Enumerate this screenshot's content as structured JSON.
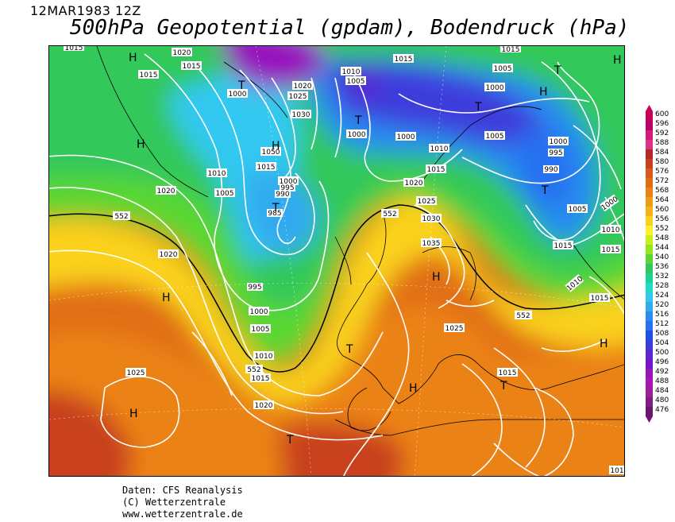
{
  "header": {
    "date": "12MAR1983 12Z",
    "title": "500hPa Geopotential (gpdam), Bodendruck (hPa)"
  },
  "credits": {
    "line1": "Daten: CFS Reanalysis",
    "line2": "(C) Wetterzentrale",
    "line3": "www.wetterzentrale.de"
  },
  "legend": {
    "values": [
      "600",
      "596",
      "592",
      "588",
      "584",
      "580",
      "576",
      "572",
      "568",
      "564",
      "560",
      "556",
      "552",
      "548",
      "544",
      "540",
      "536",
      "532",
      "528",
      "524",
      "520",
      "516",
      "512",
      "508",
      "504",
      "500",
      "496",
      "492",
      "488",
      "484",
      "480",
      "476"
    ],
    "colors": [
      "#c8005a",
      "#b8006e",
      "#d21b78",
      "#e0308a",
      "#b42828",
      "#c8401e",
      "#d75a19",
      "#e16e14",
      "#eb8214",
      "#f09b14",
      "#f5b414",
      "#fad21e",
      "#fff028",
      "#c8f01e",
      "#96e61e",
      "#5ad732",
      "#32c85a",
      "#1ed296",
      "#1edcc8",
      "#32c8f0",
      "#32aaf0",
      "#288cf0",
      "#2870f0",
      "#1e50e6",
      "#3c3cdc",
      "#5a28d2",
      "#7814c8",
      "#9614be",
      "#aa14b4",
      "#9b1e9b",
      "#821e82",
      "#6e146e"
    ]
  },
  "map": {
    "pressure_labels": [
      {
        "text": "1015"
      },
      {
        "text": "1020"
      },
      {
        "text": "1015"
      },
      {
        "text": "1015"
      },
      {
        "text": "1000"
      },
      {
        "text": "1020"
      },
      {
        "text": "1025"
      },
      {
        "text": "1030"
      },
      {
        "text": "1050"
      },
      {
        "text": "1010"
      },
      {
        "text": "1005"
      },
      {
        "text": "1000"
      },
      {
        "text": "1015"
      },
      {
        "text": "1010"
      },
      {
        "text": "1005"
      },
      {
        "text": "1000"
      },
      {
        "text": "995"
      },
      {
        "text": "990"
      },
      {
        "text": "985"
      },
      {
        "text": "1020"
      },
      {
        "text": "1015"
      },
      {
        "text": "1005"
      },
      {
        "text": "1000"
      },
      {
        "text": "1005"
      },
      {
        "text": "1010"
      },
      {
        "text": "1015"
      },
      {
        "text": "1015"
      },
      {
        "text": "1000"
      },
      {
        "text": "1010"
      },
      {
        "text": "1015"
      },
      {
        "text": "1020"
      },
      {
        "text": "1025"
      },
      {
        "text": "1030"
      },
      {
        "text": "1035"
      },
      {
        "text": "1000"
      },
      {
        "text": "995"
      },
      {
        "text": "990"
      },
      {
        "text": "1005"
      },
      {
        "text": "1000"
      },
      {
        "text": "1010"
      },
      {
        "text": "1015"
      },
      {
        "text": "1015"
      },
      {
        "text": "1010"
      },
      {
        "text": "1020"
      },
      {
        "text": "995"
      },
      {
        "text": "1000"
      },
      {
        "text": "1005"
      },
      {
        "text": "1010"
      },
      {
        "text": "1015"
      },
      {
        "text": "1020"
      },
      {
        "text": "1025"
      },
      {
        "text": "1025"
      },
      {
        "text": "1015"
      },
      {
        "text": "1015"
      },
      {
        "text": "1010"
      },
      {
        "text": "1010"
      },
      {
        "text": "101"
      }
    ],
    "height_labels": [
      {
        "text": "552"
      },
      {
        "text": "552"
      },
      {
        "text": "552"
      },
      {
        "text": "552"
      }
    ],
    "pressure_centers": [
      {
        "text": "H"
      },
      {
        "text": "T"
      },
      {
        "text": "H"
      },
      {
        "text": "T"
      },
      {
        "text": "T"
      },
      {
        "text": "T"
      },
      {
        "text": "H"
      },
      {
        "text": "T"
      },
      {
        "text": "H"
      },
      {
        "text": "H"
      },
      {
        "text": "T"
      },
      {
        "text": "H"
      },
      {
        "text": "H"
      },
      {
        "text": "H"
      },
      {
        "text": "T"
      },
      {
        "text": "H"
      },
      {
        "text": "T"
      },
      {
        "text": "H"
      },
      {
        "text": "T"
      }
    ]
  }
}
